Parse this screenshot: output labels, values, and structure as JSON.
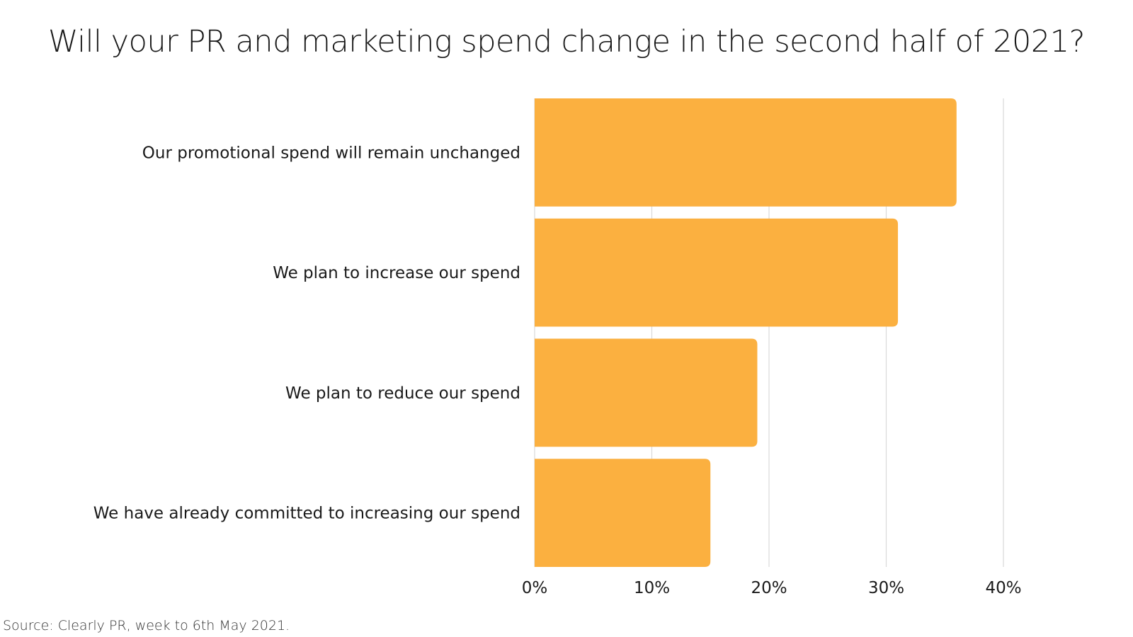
{
  "chart_data": {
    "type": "bar",
    "orientation": "horizontal",
    "title": "Will your PR and marketing spend change in the second half of 2021?",
    "categories": [
      "Our promotional spend will remain unchanged",
      "We plan to increase our spend",
      "We plan to reduce our spend",
      "We have already committed to increasing our spend"
    ],
    "values": [
      36,
      31,
      19,
      15
    ],
    "xlim": [
      0,
      40
    ],
    "x_ticks": [
      0,
      10,
      20,
      30,
      40
    ],
    "x_tick_labels": [
      "0%",
      "10%",
      "20%",
      "30%",
      "40%"
    ],
    "xlabel": "",
    "ylabel": "",
    "grid": true,
    "bar_color": "#FBB040",
    "grid_color": "#D9D9D9"
  },
  "source": "Source: Clearly PR, week to 6th May 2021."
}
